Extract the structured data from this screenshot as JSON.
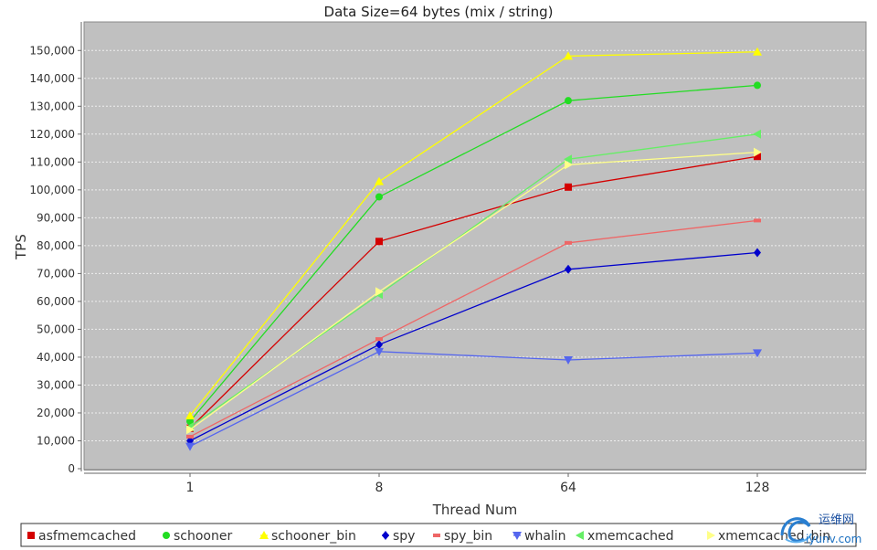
{
  "chart_data": {
    "type": "line",
    "title": "Data Size=64 bytes (mix / string)",
    "xlabel": "Thread Num",
    "ylabel": "TPS",
    "categories": [
      "1",
      "8",
      "64",
      "128"
    ],
    "ylim": [
      0,
      155000
    ],
    "yticks": [
      0,
      10000,
      20000,
      30000,
      40000,
      50000,
      60000,
      70000,
      80000,
      90000,
      100000,
      110000,
      120000,
      130000,
      140000,
      150000
    ],
    "ytick_labels": [
      "0",
      "10,000",
      "20,000",
      "30,000",
      "40,000",
      "50,000",
      "60,000",
      "70,000",
      "80,000",
      "90,000",
      "100,000",
      "110,000",
      "120,000",
      "130,000",
      "140,000",
      "150,000"
    ],
    "grid": true,
    "plot_background": "#c0c0c0",
    "legend_position": "bottom",
    "series": [
      {
        "name": "asfmemcached",
        "values": [
          14500,
          81500,
          101000,
          112000
        ],
        "color": "#d40000",
        "marker": "square"
      },
      {
        "name": "schooner",
        "values": [
          17000,
          97500,
          132000,
          137500
        ],
        "color": "#22dd22",
        "marker": "circle"
      },
      {
        "name": "schooner_bin",
        "values": [
          19000,
          103000,
          148000,
          149500
        ],
        "color": "#ffff00",
        "marker": "triangle-up"
      },
      {
        "name": "spy",
        "values": [
          10000,
          44500,
          71500,
          77500
        ],
        "color": "#0000cc",
        "marker": "diamond"
      },
      {
        "name": "spy_bin",
        "values": [
          11500,
          46500,
          81000,
          89000
        ],
        "color": "#ee6666",
        "marker": "bar"
      },
      {
        "name": "whalin",
        "values": [
          8000,
          42000,
          39000,
          41500
        ],
        "color": "#5566ee",
        "marker": "triangle-down"
      },
      {
        "name": "xmemcached",
        "values": [
          15000,
          62500,
          111000,
          120000
        ],
        "color": "#66ee66",
        "marker": "triangle-left"
      },
      {
        "name": "xmemcached_bin",
        "values": [
          14000,
          63500,
          109000,
          113500
        ],
        "color": "#ffff88",
        "marker": "triangle-right"
      }
    ]
  },
  "watermark": {
    "line1": "运维网",
    "line2": "iyunv.com",
    "icon": "swirl-logo"
  }
}
